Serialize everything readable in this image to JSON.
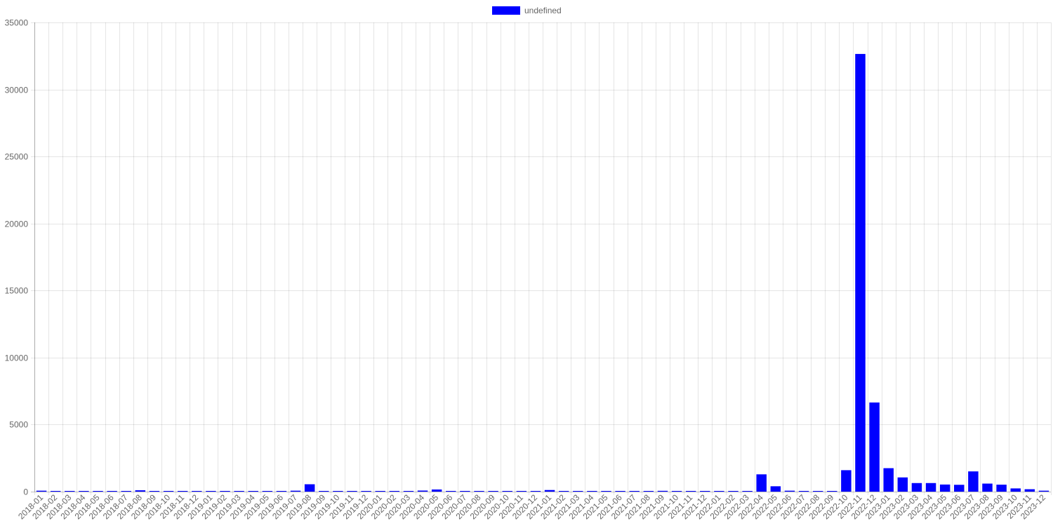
{
  "chart_data": {
    "type": "bar",
    "legend": {
      "position": "top",
      "entries": [
        {
          "label": "undefined",
          "color": "#0000ff"
        }
      ]
    },
    "series": [
      {
        "name": "undefined",
        "color": "#0000ff"
      }
    ],
    "categories": [
      "2018-01",
      "2018-02",
      "2018-03",
      "2018-04",
      "2018-05",
      "2018-06",
      "2018-07",
      "2018-08",
      "2018-09",
      "2018-10",
      "2018-11",
      "2018-12",
      "2019-01",
      "2019-02",
      "2019-03",
      "2019-04",
      "2019-05",
      "2019-06",
      "2019-07",
      "2019-08",
      "2019-09",
      "2019-10",
      "2019-11",
      "2019-12",
      "2020-01",
      "2020-02",
      "2020-03",
      "2020-04",
      "2020-05",
      "2020-06",
      "2020-07",
      "2020-08",
      "2020-09",
      "2020-10",
      "2020-11",
      "2020-12",
      "2021-01",
      "2021-02",
      "2021-03",
      "2021-04",
      "2021-05",
      "2021-06",
      "2021-07",
      "2021-08",
      "2021-09",
      "2021-10",
      "2021-11",
      "2021-12",
      "2022-01",
      "2022-02",
      "2022-03",
      "2022-04",
      "2022-05",
      "2022-06",
      "2022-07",
      "2022-08",
      "2022-09",
      "2022-10",
      "2022-11",
      "2022-12",
      "2023-01",
      "2023-02",
      "2023-03",
      "2023-04",
      "2023-05",
      "2023-06",
      "2023-07",
      "2023-08",
      "2023-09",
      "2023-10",
      "2023-11",
      "2023-12"
    ],
    "values": [
      70,
      10,
      40,
      30,
      30,
      10,
      10,
      100,
      20,
      20,
      10,
      40,
      30,
      40,
      30,
      20,
      30,
      40,
      70,
      550,
      40,
      30,
      30,
      20,
      20,
      40,
      40,
      80,
      160,
      20,
      40,
      20,
      30,
      20,
      10,
      10,
      120,
      40,
      40,
      30,
      20,
      20,
      30,
      20,
      60,
      40,
      20,
      30,
      40,
      30,
      40,
      1290,
      400,
      70,
      50,
      40,
      30,
      1600,
      32650,
      6650,
      1750,
      1060,
      640,
      640,
      530,
      510,
      1510,
      600,
      520,
      240,
      180,
      70
    ],
    "ylim": [
      0,
      35000
    ],
    "yticks": [
      "0",
      "5000",
      "10000",
      "15000",
      "20000",
      "25000",
      "30000",
      "35000"
    ],
    "grid": true,
    "title": "",
    "xlabel": "",
    "ylabel": ""
  }
}
